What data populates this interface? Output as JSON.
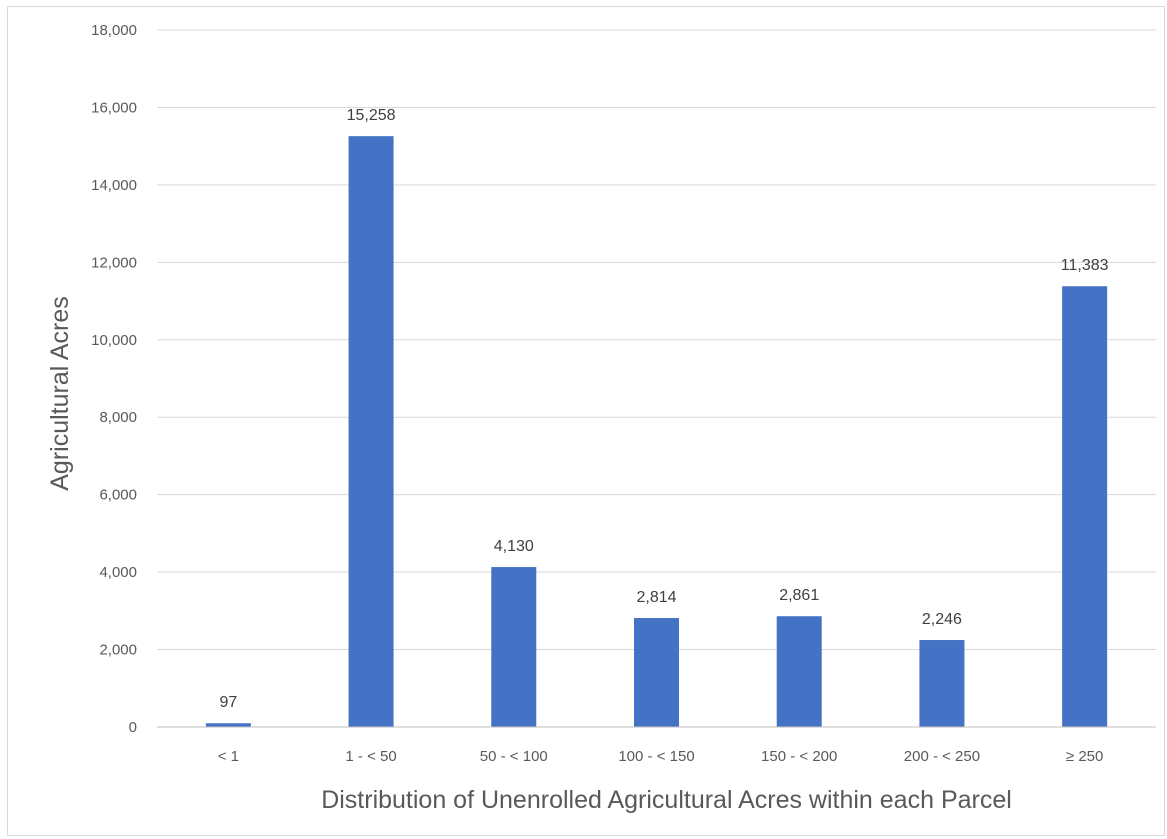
{
  "chart_data": {
    "type": "bar",
    "categories": [
      "< 1",
      "1 - < 50",
      "50 - < 100",
      "100 - < 150",
      "150 - < 200",
      "200 - < 250",
      "≥ 250"
    ],
    "values": [
      97,
      15258,
      4130,
      2814,
      2861,
      2246,
      11383
    ],
    "data_labels": [
      "97",
      "15,258",
      "4,130",
      "2,814",
      "2,861",
      "2,246",
      "11,383"
    ],
    "y_ticks": [
      0,
      2000,
      4000,
      6000,
      8000,
      10000,
      12000,
      14000,
      16000,
      18000
    ],
    "y_tick_labels": [
      "0",
      "2,000",
      "4,000",
      "6,000",
      "8,000",
      "10,000",
      "12,000",
      "14,000",
      "16,000",
      "18,000"
    ],
    "ylim": [
      0,
      18000
    ],
    "xlabel": "Distribution of Unenrolled Agricultural Acres within each Parcel",
    "ylabel": "Agricultural Acres",
    "title": "",
    "grid": true,
    "legend": "none",
    "colors": {
      "bar": "#4472c4",
      "grid": "#d9d9d9",
      "axis": "#bfbfbf"
    }
  }
}
